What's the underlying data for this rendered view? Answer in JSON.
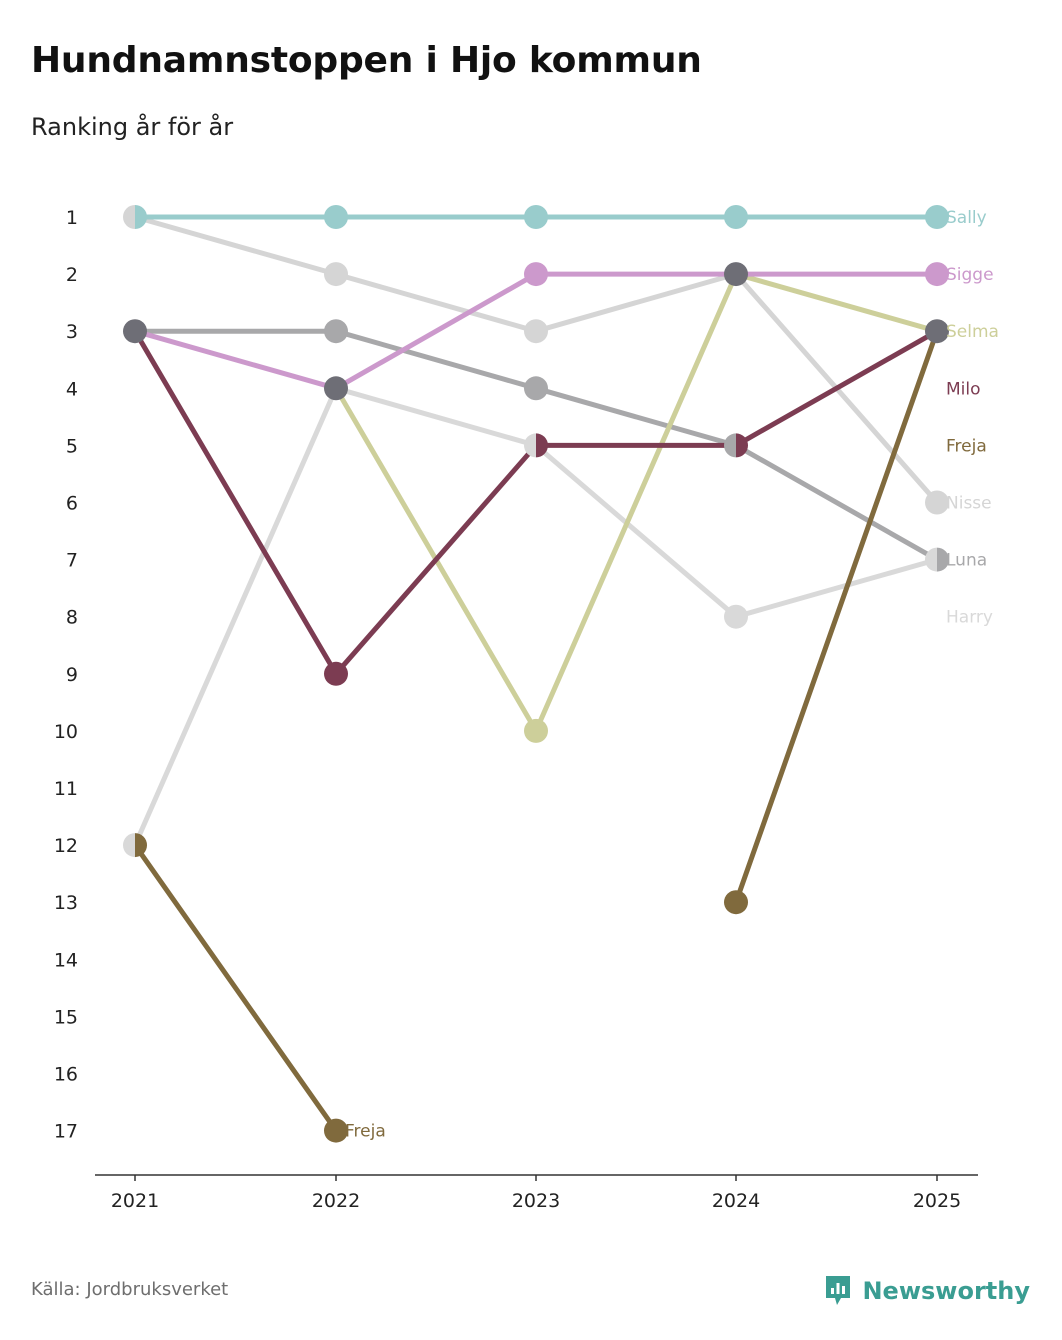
{
  "header": {
    "title": "Hundnamnstoppen i Hjo kommun",
    "subtitle": "Ranking år för år"
  },
  "footer": {
    "source": "Källa: Jordbruksverket",
    "brand": "Newsworthy",
    "brand_color": "#3a9d92"
  },
  "chart_data": {
    "type": "line",
    "title": "Hundnamnstoppen i Hjo kommun",
    "subtitle": "Ranking år för år",
    "xlabel": "",
    "ylabel": "",
    "x": [
      "2021",
      "2022",
      "2023",
      "2024",
      "2025"
    ],
    "y_ticks": [
      1,
      2,
      3,
      4,
      5,
      6,
      7,
      8,
      9,
      10,
      11,
      12,
      13,
      14,
      15,
      16,
      17
    ],
    "ylim": [
      1,
      17
    ],
    "y_inverted": true,
    "grid": false,
    "series": [
      {
        "name": "Harry",
        "color": "#d9d9d9",
        "values": [
          12,
          4,
          5,
          8,
          7
        ]
      },
      {
        "name": "Nisse",
        "color": "#d5d5d5",
        "values": [
          1,
          2,
          3,
          2,
          6
        ]
      },
      {
        "name": "Luna",
        "color": "#a8a8aa",
        "values": [
          3,
          3,
          4,
          5,
          7
        ]
      },
      {
        "name": "Freja",
        "color": "#806a3d",
        "values": [
          12,
          17,
          null,
          13,
          3
        ]
      },
      {
        "name": "Selma",
        "color": "#cdcf9a",
        "values": [
          null,
          4,
          10,
          2,
          3
        ]
      },
      {
        "name": "Milo",
        "color": "#7c3c52",
        "values": [
          3,
          9,
          5,
          5,
          3
        ]
      },
      {
        "name": "Sigge",
        "color": "#cc99cc",
        "values": [
          3,
          4,
          2,
          2,
          2
        ]
      },
      {
        "name": "Sally",
        "color": "#99cccc",
        "values": [
          1,
          1,
          1,
          1,
          1
        ]
      }
    ],
    "labels": [
      {
        "text": "Sally",
        "series": "Sally",
        "rank": 1
      },
      {
        "text": "Sigge",
        "series": "Sigge",
        "rank": 2
      },
      {
        "text": "Selma",
        "series": "Selma",
        "rank": 3
      },
      {
        "text": "Milo",
        "series": "Milo",
        "rank": 4
      },
      {
        "text": "Freja",
        "series": "Freja",
        "rank": 5
      },
      {
        "text": "Nisse",
        "series": "Nisse",
        "rank": 6
      },
      {
        "text": "Luna",
        "series": "Luna",
        "rank": 7
      },
      {
        "text": "Harry",
        "series": "Harry",
        "rank": 8
      }
    ],
    "inline_labels": [
      {
        "text": "Freja",
        "series": "Freja",
        "year": "2022",
        "rank": 17
      }
    ],
    "overlap_color": "#6e6e76"
  }
}
